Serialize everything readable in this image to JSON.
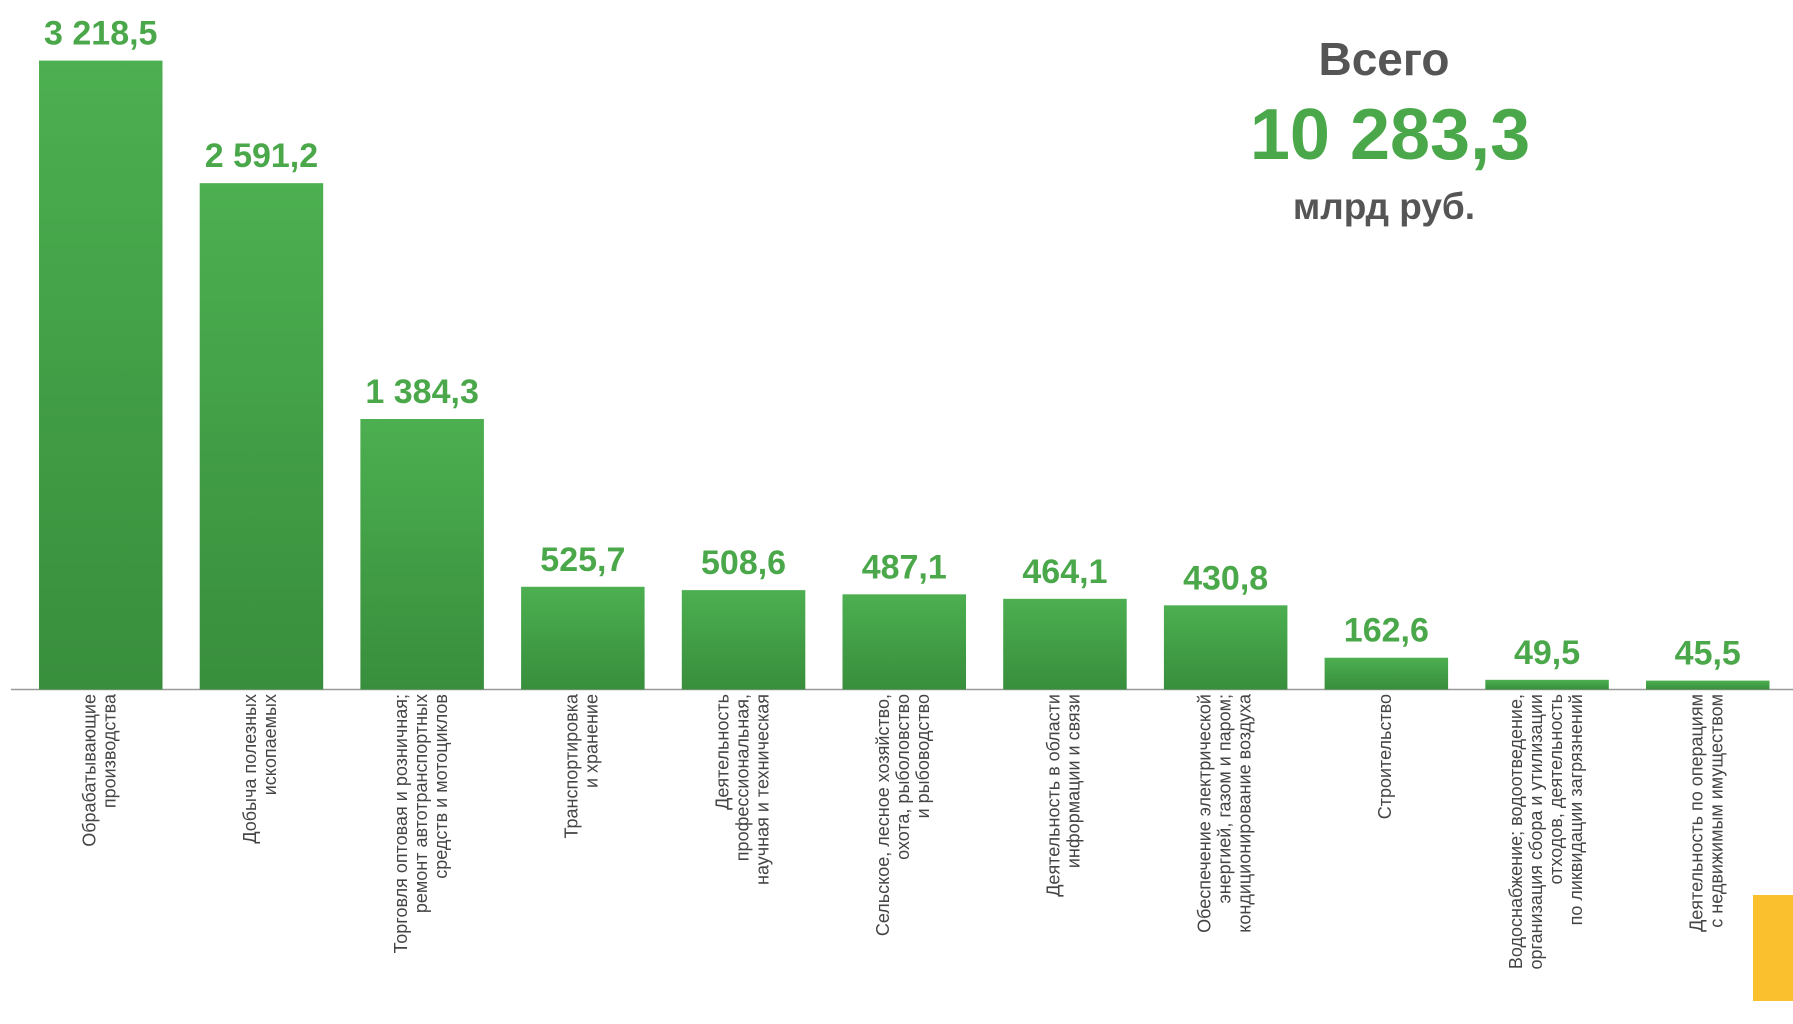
{
  "chart_data": {
    "type": "bar",
    "categories": [
      [
        "Обрабатывающие",
        "производства"
      ],
      [
        "Добыча полезных",
        "ископаемых"
      ],
      [
        "Торговля оптовая и розничная;",
        "ремонт автотранспортных",
        "средств и мотоциклов"
      ],
      [
        "Транспортировка",
        "и хранение"
      ],
      [
        "Деятельность",
        "профессиональная,",
        "научная и техническая"
      ],
      [
        "Сельское, лесное хозяйство,",
        "охота, рыболовство",
        "и рыбоводство"
      ],
      [
        "Деятельность в области",
        "информации и связи"
      ],
      [
        "Обеспечение электрической",
        "энергией, газом и паром;",
        "кондиционирование воздуха"
      ],
      [
        "Строительство"
      ],
      [
        "Водоснабжение; водоотведение,",
        "организация сбора и утилизации",
        "отходов, деятельность",
        "по ликвидации загрязнений"
      ],
      [
        "Деятельность по операциям",
        "с недвижимым имуществом"
      ]
    ],
    "values": [
      3218.5,
      2591.2,
      1384.3,
      525.7,
      508.6,
      487.1,
      464.1,
      430.8,
      162.6,
      49.5,
      45.5
    ],
    "value_labels": [
      "3 218,5",
      "2 591,2",
      "1 384,3",
      "525,7",
      "508,6",
      "487,1",
      "464,1",
      "430,8",
      "162,6",
      "49,5",
      "45,5"
    ],
    "color": "#43a047",
    "total": {
      "title": "Всего",
      "value": 10283.3,
      "value_label": "10 283,3",
      "unit": "млрд руб."
    }
  }
}
